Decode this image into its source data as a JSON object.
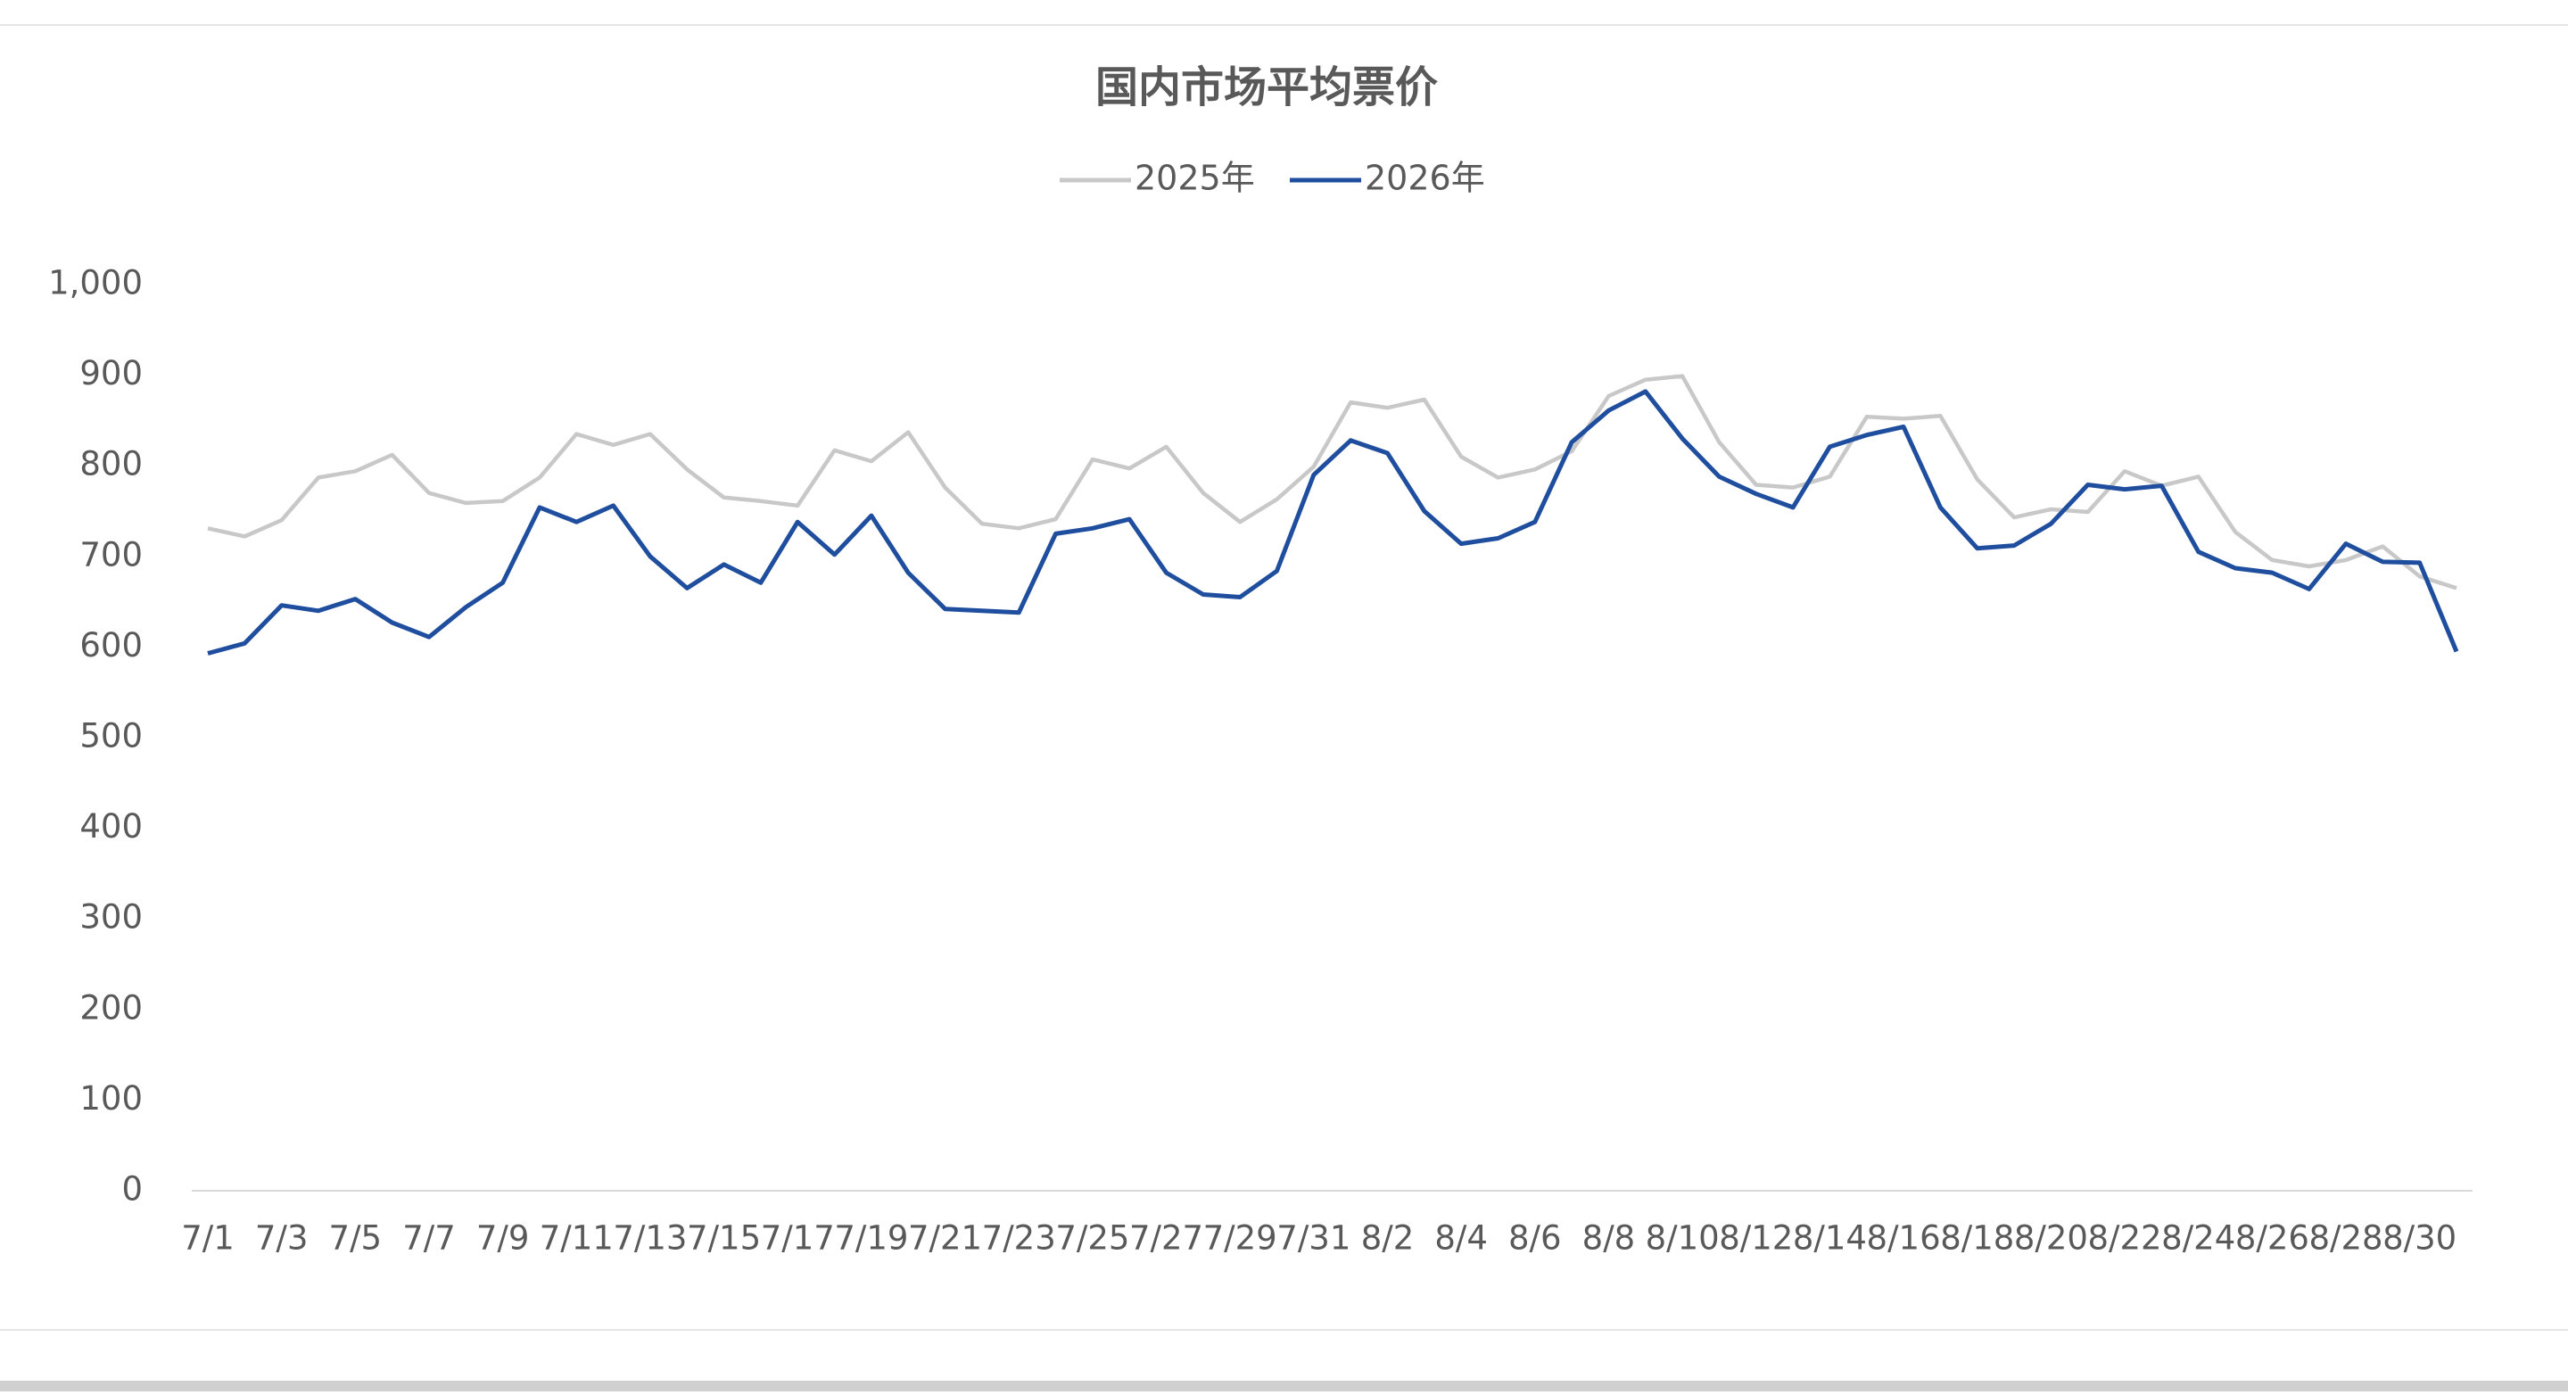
{
  "chart_data": {
    "type": "line",
    "title": "国内市场平均票价",
    "categories": [
      "7/1",
      null,
      "7/3",
      null,
      "7/5",
      null,
      "7/7",
      null,
      "7/9",
      null,
      "7/11",
      null,
      "7/13",
      null,
      "7/15",
      null,
      "7/17",
      null,
      "7/19",
      null,
      "7/21",
      null,
      "7/23",
      null,
      "7/25",
      null,
      "7/27",
      null,
      "7/29",
      null,
      "7/31",
      null,
      "8/2",
      null,
      "8/4",
      null,
      "8/6",
      null,
      "8/8",
      null,
      "8/10",
      null,
      "8/12",
      null,
      "8/14",
      null,
      "8/16",
      null,
      "8/18",
      null,
      "8/20",
      null,
      "8/22",
      null,
      "8/24",
      null,
      "8/26",
      null,
      "8/28",
      null,
      "8/30",
      null
    ],
    "series": [
      {
        "name": "2025年",
        "color": "#c8c8c8",
        "values": [
          731,
          722,
          740,
          787,
          794,
          812,
          770,
          759,
          761,
          787,
          835,
          823,
          835,
          796,
          765,
          761,
          756,
          817,
          805,
          837,
          776,
          736,
          731,
          741,
          807,
          797,
          821,
          770,
          738,
          763,
          799,
          870,
          864,
          873,
          810,
          787,
          796,
          816,
          877,
          895,
          899,
          826,
          779,
          776,
          788,
          854,
          852,
          855,
          785,
          743,
          752,
          749,
          794,
          778,
          788,
          727,
          696,
          689,
          696,
          711,
          678,
          665
        ]
      },
      {
        "name": "2026年",
        "color": "#1f4e9e",
        "values": [
          593,
          604,
          646,
          640,
          653,
          627,
          611,
          644,
          671,
          754,
          738,
          756,
          700,
          665,
          691,
          671,
          738,
          702,
          745,
          682,
          642,
          640,
          638,
          725,
          731,
          741,
          682,
          658,
          655,
          684,
          790,
          828,
          814,
          750,
          714,
          720,
          738,
          826,
          861,
          882,
          830,
          788,
          769,
          754,
          821,
          834,
          843,
          754,
          709,
          712,
          736,
          779,
          774,
          778,
          705,
          687,
          682,
          664,
          714,
          694,
          693,
          595
        ]
      }
    ],
    "ylim": [
      0,
      1000
    ],
    "yticks": [
      0,
      100,
      200,
      300,
      400,
      500,
      600,
      700,
      800,
      900,
      {
        "value": 1000,
        "label": "1,000"
      }
    ],
    "legend": "top"
  }
}
